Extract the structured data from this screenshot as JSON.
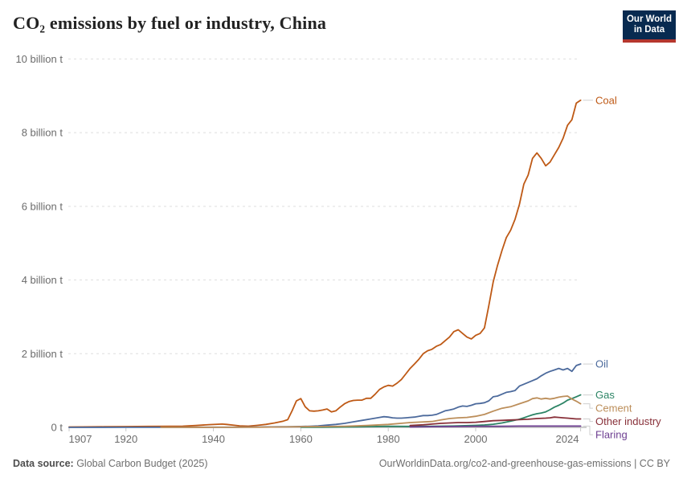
{
  "header": {
    "title": "CO₂ emissions by fuel or industry, China",
    "logo": {
      "line1": "Our World",
      "line2": "in Data",
      "bg_color": "#082a50",
      "accent_color": "#b5372e"
    }
  },
  "footer": {
    "source_label": "Data source:",
    "source_value": " Global Carbon Budget (2025)",
    "credit": "OurWorldinData.org/co2-and-greenhouse-gas-emissions | CC BY"
  },
  "chart_data": {
    "type": "line",
    "title": "CO₂ emissions by fuel or industry, China",
    "xlabel": "Year",
    "ylabel": "billion t",
    "xlim": [
      1907,
      2024
    ],
    "ylim": [
      0,
      10
    ],
    "grid": "horizontal-dashed",
    "legend_position": "right-of-line-ends",
    "colors": {
      "grid": "#dedede",
      "axis": "#9c9c9c",
      "tick_text": "#6b6b6b"
    },
    "x_ticks": [
      {
        "year": 1907,
        "label": "1907"
      },
      {
        "year": 1920,
        "label": "1920"
      },
      {
        "year": 1940,
        "label": "1940"
      },
      {
        "year": 1960,
        "label": "1960"
      },
      {
        "year": 1980,
        "label": "1980"
      },
      {
        "year": 2000,
        "label": "2000"
      },
      {
        "year": 2024,
        "label": "2024"
      }
    ],
    "y_ticks": [
      {
        "value": 0,
        "label": "0 t"
      },
      {
        "value": 2,
        "label": "2 billion t"
      },
      {
        "value": 4,
        "label": "4 billion t"
      },
      {
        "value": 6,
        "label": "6 billion t"
      },
      {
        "value": 8,
        "label": "8 billion t"
      },
      {
        "value": 10,
        "label": "10 billion t"
      }
    ],
    "series": [
      {
        "name": "Coal",
        "slug": "coal",
        "color": "#BE5915",
        "points": [
          [
            1907,
            0.01
          ],
          [
            1910,
            0.013
          ],
          [
            1915,
            0.018
          ],
          [
            1920,
            0.022
          ],
          [
            1925,
            0.026
          ],
          [
            1930,
            0.03
          ],
          [
            1933,
            0.032
          ],
          [
            1936,
            0.05
          ],
          [
            1939,
            0.075
          ],
          [
            1941,
            0.085
          ],
          [
            1942,
            0.09
          ],
          [
            1943,
            0.08
          ],
          [
            1945,
            0.055
          ],
          [
            1946,
            0.04
          ],
          [
            1948,
            0.033
          ],
          [
            1950,
            0.055
          ],
          [
            1952,
            0.08
          ],
          [
            1954,
            0.12
          ],
          [
            1956,
            0.17
          ],
          [
            1957,
            0.21
          ],
          [
            1958,
            0.45
          ],
          [
            1959,
            0.72
          ],
          [
            1960,
            0.78
          ],
          [
            1961,
            0.56
          ],
          [
            1962,
            0.45
          ],
          [
            1963,
            0.44
          ],
          [
            1964,
            0.45
          ],
          [
            1965,
            0.47
          ],
          [
            1966,
            0.5
          ],
          [
            1967,
            0.42
          ],
          [
            1968,
            0.45
          ],
          [
            1969,
            0.55
          ],
          [
            1970,
            0.64
          ],
          [
            1971,
            0.7
          ],
          [
            1972,
            0.73
          ],
          [
            1973,
            0.74
          ],
          [
            1974,
            0.74
          ],
          [
            1975,
            0.79
          ],
          [
            1976,
            0.79
          ],
          [
            1977,
            0.9
          ],
          [
            1978,
            1.03
          ],
          [
            1979,
            1.1
          ],
          [
            1980,
            1.14
          ],
          [
            1981,
            1.12
          ],
          [
            1982,
            1.2
          ],
          [
            1983,
            1.3
          ],
          [
            1984,
            1.45
          ],
          [
            1985,
            1.6
          ],
          [
            1986,
            1.72
          ],
          [
            1987,
            1.85
          ],
          [
            1988,
            2.0
          ],
          [
            1989,
            2.08
          ],
          [
            1990,
            2.12
          ],
          [
            1991,
            2.2
          ],
          [
            1992,
            2.25
          ],
          [
            1993,
            2.35
          ],
          [
            1994,
            2.45
          ],
          [
            1995,
            2.6
          ],
          [
            1996,
            2.65
          ],
          [
            1997,
            2.55
          ],
          [
            1998,
            2.45
          ],
          [
            1999,
            2.4
          ],
          [
            2000,
            2.5
          ],
          [
            2001,
            2.55
          ],
          [
            2002,
            2.7
          ],
          [
            2003,
            3.3
          ],
          [
            2004,
            3.95
          ],
          [
            2005,
            4.4
          ],
          [
            2006,
            4.8
          ],
          [
            2007,
            5.15
          ],
          [
            2008,
            5.35
          ],
          [
            2009,
            5.65
          ],
          [
            2010,
            6.05
          ],
          [
            2011,
            6.6
          ],
          [
            2012,
            6.85
          ],
          [
            2013,
            7.3
          ],
          [
            2014,
            7.45
          ],
          [
            2015,
            7.3
          ],
          [
            2016,
            7.1
          ],
          [
            2017,
            7.2
          ],
          [
            2018,
            7.4
          ],
          [
            2019,
            7.6
          ],
          [
            2020,
            7.85
          ],
          [
            2021,
            8.2
          ],
          [
            2022,
            8.35
          ],
          [
            2023,
            8.8
          ],
          [
            2024,
            8.88
          ]
        ]
      },
      {
        "name": "Oil",
        "slug": "oil",
        "color": "#4C6A9C",
        "points": [
          [
            1907,
            0.001
          ],
          [
            1920,
            0.002
          ],
          [
            1930,
            0.003
          ],
          [
            1940,
            0.005
          ],
          [
            1945,
            0.004
          ],
          [
            1950,
            0.008
          ],
          [
            1955,
            0.015
          ],
          [
            1958,
            0.02
          ],
          [
            1960,
            0.025
          ],
          [
            1962,
            0.03
          ],
          [
            1964,
            0.04
          ],
          [
            1966,
            0.06
          ],
          [
            1968,
            0.08
          ],
          [
            1970,
            0.11
          ],
          [
            1972,
            0.15
          ],
          [
            1974,
            0.19
          ],
          [
            1976,
            0.23
          ],
          [
            1978,
            0.27
          ],
          [
            1979,
            0.29
          ],
          [
            1980,
            0.28
          ],
          [
            1981,
            0.26
          ],
          [
            1982,
            0.25
          ],
          [
            1983,
            0.25
          ],
          [
            1984,
            0.26
          ],
          [
            1985,
            0.27
          ],
          [
            1986,
            0.28
          ],
          [
            1987,
            0.3
          ],
          [
            1988,
            0.32
          ],
          [
            1989,
            0.32
          ],
          [
            1990,
            0.33
          ],
          [
            1991,
            0.35
          ],
          [
            1992,
            0.4
          ],
          [
            1993,
            0.45
          ],
          [
            1994,
            0.47
          ],
          [
            1995,
            0.5
          ],
          [
            1996,
            0.55
          ],
          [
            1997,
            0.58
          ],
          [
            1998,
            0.57
          ],
          [
            1999,
            0.6
          ],
          [
            2000,
            0.64
          ],
          [
            2001,
            0.65
          ],
          [
            2002,
            0.67
          ],
          [
            2003,
            0.72
          ],
          [
            2004,
            0.83
          ],
          [
            2005,
            0.85
          ],
          [
            2006,
            0.9
          ],
          [
            2007,
            0.95
          ],
          [
            2008,
            0.97
          ],
          [
            2009,
            1.0
          ],
          [
            2010,
            1.12
          ],
          [
            2011,
            1.17
          ],
          [
            2012,
            1.22
          ],
          [
            2013,
            1.27
          ],
          [
            2014,
            1.32
          ],
          [
            2015,
            1.4
          ],
          [
            2016,
            1.47
          ],
          [
            2017,
            1.52
          ],
          [
            2018,
            1.56
          ],
          [
            2019,
            1.6
          ],
          [
            2020,
            1.56
          ],
          [
            2021,
            1.6
          ],
          [
            2022,
            1.52
          ],
          [
            2023,
            1.68
          ],
          [
            2024,
            1.72
          ]
        ]
      },
      {
        "name": "Gas",
        "slug": "gas",
        "color": "#2C8465",
        "points": [
          [
            1960,
            0.002
          ],
          [
            1965,
            0.004
          ],
          [
            1970,
            0.008
          ],
          [
            1975,
            0.02
          ],
          [
            1980,
            0.03
          ],
          [
            1985,
            0.026
          ],
          [
            1990,
            0.031
          ],
          [
            1995,
            0.037
          ],
          [
            2000,
            0.055
          ],
          [
            2002,
            0.065
          ],
          [
            2004,
            0.085
          ],
          [
            2006,
            0.12
          ],
          [
            2008,
            0.17
          ],
          [
            2010,
            0.22
          ],
          [
            2011,
            0.26
          ],
          [
            2012,
            0.3
          ],
          [
            2013,
            0.34
          ],
          [
            2014,
            0.37
          ],
          [
            2015,
            0.39
          ],
          [
            2016,
            0.42
          ],
          [
            2017,
            0.48
          ],
          [
            2018,
            0.55
          ],
          [
            2019,
            0.6
          ],
          [
            2020,
            0.66
          ],
          [
            2021,
            0.74
          ],
          [
            2022,
            0.78
          ],
          [
            2023,
            0.83
          ],
          [
            2024,
            0.88
          ]
        ]
      },
      {
        "name": "Cement",
        "slug": "cement",
        "color": "#BC8E5A",
        "points": [
          [
            1928,
            0.001
          ],
          [
            1940,
            0.002
          ],
          [
            1950,
            0.003
          ],
          [
            1955,
            0.01
          ],
          [
            1960,
            0.02
          ],
          [
            1965,
            0.022
          ],
          [
            1970,
            0.03
          ],
          [
            1975,
            0.05
          ],
          [
            1980,
            0.08
          ],
          [
            1985,
            0.13
          ],
          [
            1990,
            0.16
          ],
          [
            1992,
            0.2
          ],
          [
            1994,
            0.24
          ],
          [
            1996,
            0.26
          ],
          [
            1998,
            0.27
          ],
          [
            2000,
            0.3
          ],
          [
            2002,
            0.35
          ],
          [
            2004,
            0.44
          ],
          [
            2006,
            0.52
          ],
          [
            2008,
            0.56
          ],
          [
            2010,
            0.64
          ],
          [
            2012,
            0.72
          ],
          [
            2013,
            0.78
          ],
          [
            2014,
            0.8
          ],
          [
            2015,
            0.77
          ],
          [
            2016,
            0.79
          ],
          [
            2017,
            0.77
          ],
          [
            2018,
            0.79
          ],
          [
            2019,
            0.82
          ],
          [
            2020,
            0.84
          ],
          [
            2021,
            0.85
          ],
          [
            2022,
            0.77
          ],
          [
            2023,
            0.71
          ],
          [
            2024,
            0.64
          ]
        ]
      },
      {
        "name": "Other industry",
        "slug": "other-industry",
        "color": "#883039",
        "points": [
          [
            1985,
            0.05
          ],
          [
            1988,
            0.07
          ],
          [
            1990,
            0.09
          ],
          [
            1992,
            0.11
          ],
          [
            1994,
            0.12
          ],
          [
            1996,
            0.13
          ],
          [
            1998,
            0.13
          ],
          [
            2000,
            0.14
          ],
          [
            2002,
            0.16
          ],
          [
            2004,
            0.18
          ],
          [
            2006,
            0.19
          ],
          [
            2008,
            0.2
          ],
          [
            2010,
            0.21
          ],
          [
            2012,
            0.22
          ],
          [
            2014,
            0.24
          ],
          [
            2016,
            0.25
          ],
          [
            2017,
            0.26
          ],
          [
            2018,
            0.28
          ],
          [
            2019,
            0.27
          ],
          [
            2020,
            0.26
          ],
          [
            2021,
            0.25
          ],
          [
            2022,
            0.24
          ],
          [
            2023,
            0.23
          ],
          [
            2024,
            0.23
          ]
        ]
      },
      {
        "name": "Flaring",
        "slug": "flaring",
        "color": "#6D3E91",
        "points": [
          [
            1985,
            0.01
          ],
          [
            1990,
            0.02
          ],
          [
            1995,
            0.025
          ],
          [
            2000,
            0.03
          ],
          [
            2005,
            0.03
          ],
          [
            2010,
            0.035
          ],
          [
            2015,
            0.035
          ],
          [
            2020,
            0.035
          ],
          [
            2024,
            0.035
          ]
        ]
      }
    ]
  }
}
